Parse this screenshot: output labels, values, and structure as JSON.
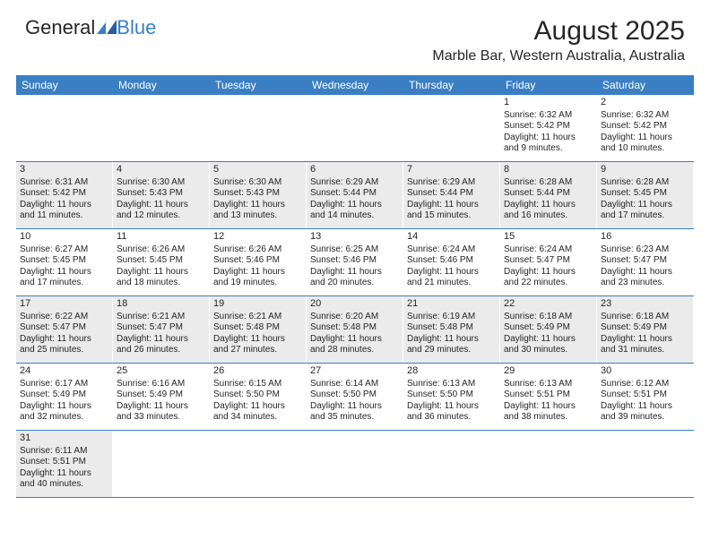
{
  "logo": {
    "text1": "General",
    "text2": "Blue"
  },
  "title": "August 2025",
  "location": "Marble Bar, Western Australia, Australia",
  "dayNames": [
    "Sunday",
    "Monday",
    "Tuesday",
    "Wednesday",
    "Thursday",
    "Friday",
    "Saturday"
  ],
  "colors": {
    "headerBar": "#3a7fc4",
    "shaded": "#ebebeb",
    "border": "#3a7fc4",
    "text": "#262626"
  },
  "weeks": [
    [
      {
        "empty": true
      },
      {
        "empty": true
      },
      {
        "empty": true
      },
      {
        "empty": true
      },
      {
        "empty": true
      },
      {
        "day": "1",
        "sunrise": "Sunrise: 6:32 AM",
        "sunset": "Sunset: 5:42 PM",
        "day1": "Daylight: 11 hours",
        "day2": "and 9 minutes."
      },
      {
        "day": "2",
        "sunrise": "Sunrise: 6:32 AM",
        "sunset": "Sunset: 5:42 PM",
        "day1": "Daylight: 11 hours",
        "day2": "and 10 minutes."
      }
    ],
    [
      {
        "day": "3",
        "shaded": true,
        "sunrise": "Sunrise: 6:31 AM",
        "sunset": "Sunset: 5:42 PM",
        "day1": "Daylight: 11 hours",
        "day2": "and 11 minutes."
      },
      {
        "day": "4",
        "shaded": true,
        "sunrise": "Sunrise: 6:30 AM",
        "sunset": "Sunset: 5:43 PM",
        "day1": "Daylight: 11 hours",
        "day2": "and 12 minutes."
      },
      {
        "day": "5",
        "shaded": true,
        "sunrise": "Sunrise: 6:30 AM",
        "sunset": "Sunset: 5:43 PM",
        "day1": "Daylight: 11 hours",
        "day2": "and 13 minutes."
      },
      {
        "day": "6",
        "shaded": true,
        "sunrise": "Sunrise: 6:29 AM",
        "sunset": "Sunset: 5:44 PM",
        "day1": "Daylight: 11 hours",
        "day2": "and 14 minutes."
      },
      {
        "day": "7",
        "shaded": true,
        "sunrise": "Sunrise: 6:29 AM",
        "sunset": "Sunset: 5:44 PM",
        "day1": "Daylight: 11 hours",
        "day2": "and 15 minutes."
      },
      {
        "day": "8",
        "shaded": true,
        "sunrise": "Sunrise: 6:28 AM",
        "sunset": "Sunset: 5:44 PM",
        "day1": "Daylight: 11 hours",
        "day2": "and 16 minutes."
      },
      {
        "day": "9",
        "shaded": true,
        "sunrise": "Sunrise: 6:28 AM",
        "sunset": "Sunset: 5:45 PM",
        "day1": "Daylight: 11 hours",
        "day2": "and 17 minutes."
      }
    ],
    [
      {
        "day": "10",
        "sunrise": "Sunrise: 6:27 AM",
        "sunset": "Sunset: 5:45 PM",
        "day1": "Daylight: 11 hours",
        "day2": "and 17 minutes."
      },
      {
        "day": "11",
        "sunrise": "Sunrise: 6:26 AM",
        "sunset": "Sunset: 5:45 PM",
        "day1": "Daylight: 11 hours",
        "day2": "and 18 minutes."
      },
      {
        "day": "12",
        "sunrise": "Sunrise: 6:26 AM",
        "sunset": "Sunset: 5:46 PM",
        "day1": "Daylight: 11 hours",
        "day2": "and 19 minutes."
      },
      {
        "day": "13",
        "sunrise": "Sunrise: 6:25 AM",
        "sunset": "Sunset: 5:46 PM",
        "day1": "Daylight: 11 hours",
        "day2": "and 20 minutes."
      },
      {
        "day": "14",
        "sunrise": "Sunrise: 6:24 AM",
        "sunset": "Sunset: 5:46 PM",
        "day1": "Daylight: 11 hours",
        "day2": "and 21 minutes."
      },
      {
        "day": "15",
        "sunrise": "Sunrise: 6:24 AM",
        "sunset": "Sunset: 5:47 PM",
        "day1": "Daylight: 11 hours",
        "day2": "and 22 minutes."
      },
      {
        "day": "16",
        "sunrise": "Sunrise: 6:23 AM",
        "sunset": "Sunset: 5:47 PM",
        "day1": "Daylight: 11 hours",
        "day2": "and 23 minutes."
      }
    ],
    [
      {
        "day": "17",
        "shaded": true,
        "sunrise": "Sunrise: 6:22 AM",
        "sunset": "Sunset: 5:47 PM",
        "day1": "Daylight: 11 hours",
        "day2": "and 25 minutes."
      },
      {
        "day": "18",
        "shaded": true,
        "sunrise": "Sunrise: 6:21 AM",
        "sunset": "Sunset: 5:47 PM",
        "day1": "Daylight: 11 hours",
        "day2": "and 26 minutes."
      },
      {
        "day": "19",
        "shaded": true,
        "sunrise": "Sunrise: 6:21 AM",
        "sunset": "Sunset: 5:48 PM",
        "day1": "Daylight: 11 hours",
        "day2": "and 27 minutes."
      },
      {
        "day": "20",
        "shaded": true,
        "sunrise": "Sunrise: 6:20 AM",
        "sunset": "Sunset: 5:48 PM",
        "day1": "Daylight: 11 hours",
        "day2": "and 28 minutes."
      },
      {
        "day": "21",
        "shaded": true,
        "sunrise": "Sunrise: 6:19 AM",
        "sunset": "Sunset: 5:48 PM",
        "day1": "Daylight: 11 hours",
        "day2": "and 29 minutes."
      },
      {
        "day": "22",
        "shaded": true,
        "sunrise": "Sunrise: 6:18 AM",
        "sunset": "Sunset: 5:49 PM",
        "day1": "Daylight: 11 hours",
        "day2": "and 30 minutes."
      },
      {
        "day": "23",
        "shaded": true,
        "sunrise": "Sunrise: 6:18 AM",
        "sunset": "Sunset: 5:49 PM",
        "day1": "Daylight: 11 hours",
        "day2": "and 31 minutes."
      }
    ],
    [
      {
        "day": "24",
        "sunrise": "Sunrise: 6:17 AM",
        "sunset": "Sunset: 5:49 PM",
        "day1": "Daylight: 11 hours",
        "day2": "and 32 minutes."
      },
      {
        "day": "25",
        "sunrise": "Sunrise: 6:16 AM",
        "sunset": "Sunset: 5:49 PM",
        "day1": "Daylight: 11 hours",
        "day2": "and 33 minutes."
      },
      {
        "day": "26",
        "sunrise": "Sunrise: 6:15 AM",
        "sunset": "Sunset: 5:50 PM",
        "day1": "Daylight: 11 hours",
        "day2": "and 34 minutes."
      },
      {
        "day": "27",
        "sunrise": "Sunrise: 6:14 AM",
        "sunset": "Sunset: 5:50 PM",
        "day1": "Daylight: 11 hours",
        "day2": "and 35 minutes."
      },
      {
        "day": "28",
        "sunrise": "Sunrise: 6:13 AM",
        "sunset": "Sunset: 5:50 PM",
        "day1": "Daylight: 11 hours",
        "day2": "and 36 minutes."
      },
      {
        "day": "29",
        "sunrise": "Sunrise: 6:13 AM",
        "sunset": "Sunset: 5:51 PM",
        "day1": "Daylight: 11 hours",
        "day2": "and 38 minutes."
      },
      {
        "day": "30",
        "sunrise": "Sunrise: 6:12 AM",
        "sunset": "Sunset: 5:51 PM",
        "day1": "Daylight: 11 hours",
        "day2": "and 39 minutes."
      }
    ],
    [
      {
        "day": "31",
        "shaded": true,
        "sunrise": "Sunrise: 6:11 AM",
        "sunset": "Sunset: 5:51 PM",
        "day1": "Daylight: 11 hours",
        "day2": "and 40 minutes."
      },
      {
        "empty": true
      },
      {
        "empty": true
      },
      {
        "empty": true
      },
      {
        "empty": true
      },
      {
        "empty": true
      },
      {
        "empty": true
      }
    ]
  ]
}
